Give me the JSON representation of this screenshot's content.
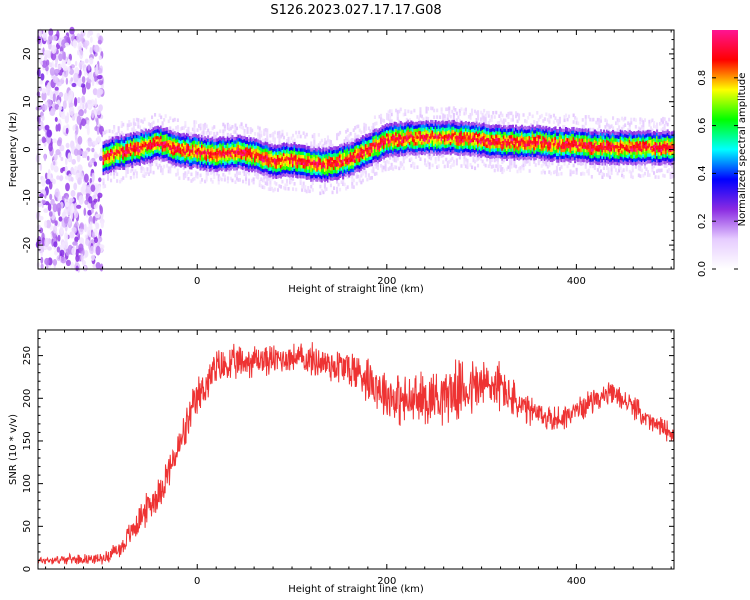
{
  "title": "S126.2023.027.17.17.G08",
  "chart_data": [
    {
      "type": "heatmap",
      "xlabel": "Height of straight line (km)",
      "ylabel": "Frequency (Hz)",
      "xlim": [
        -168,
        503
      ],
      "ylim": [
        -25,
        25
      ],
      "xticks": [
        0,
        200,
        400
      ],
      "yticks": [
        -20,
        -10,
        0,
        10,
        20
      ],
      "colorbar": {
        "label": "Normalized spectral amplitude",
        "range": [
          0.0,
          1.0
        ],
        "ticks": [
          0.0,
          0.2,
          0.4,
          0.6,
          0.8
        ],
        "colors": [
          "#ffffff",
          "#e6ccff",
          "#8a2be2",
          "#0000ff",
          "#00ffff",
          "#00ff00",
          "#ffff00",
          "#ff0000",
          "#ff1493"
        ]
      },
      "noise_region_x": [
        -168,
        -100
      ],
      "peak_frequency_track": {
        "x": [
          -100,
          -80,
          -60,
          -40,
          -20,
          0,
          20,
          40,
          60,
          80,
          100,
          120,
          140,
          160,
          180,
          200,
          220,
          240,
          260,
          280,
          300,
          320,
          340,
          360,
          380,
          400,
          420,
          440,
          460,
          480,
          500
        ],
        "y": [
          -1.5,
          -0.5,
          0.5,
          1.5,
          0,
          -0.5,
          -1,
          -0.5,
          -1,
          -2.5,
          -2,
          -3,
          -3,
          -2,
          0,
          2,
          2.5,
          2.5,
          2.5,
          2.5,
          2,
          1.5,
          1.5,
          1.5,
          1,
          1,
          0.5,
          0.5,
          0.5,
          0.5,
          0.5
        ]
      }
    },
    {
      "type": "line",
      "xlabel": "Height of straight line (km)",
      "ylabel": "SNR (10 * v/v)",
      "xlim": [
        -168,
        503
      ],
      "ylim": [
        0,
        280
      ],
      "xticks": [
        0,
        200,
        400
      ],
      "yticks": [
        0,
        50,
        100,
        150,
        200,
        250
      ],
      "color": "#ee3333",
      "envelope": {
        "x": [
          -168,
          -120,
          -100,
          -80,
          -60,
          -40,
          -20,
          0,
          20,
          40,
          60,
          80,
          100,
          120,
          140,
          160,
          180,
          200,
          220,
          240,
          260,
          280,
          300,
          320,
          340,
          360,
          380,
          400,
          420,
          440,
          460,
          480,
          503
        ],
        "y": [
          10,
          12,
          12,
          25,
          60,
          90,
          140,
          200,
          235,
          240,
          245,
          245,
          248,
          245,
          240,
          235,
          225,
          205,
          195,
          200,
          205,
          210,
          215,
          215,
          190,
          180,
          175,
          185,
          200,
          205,
          190,
          170,
          160
        ]
      },
      "noise_amplitude": {
        "x": [
          -168,
          -100,
          -60,
          0,
          100,
          200,
          300,
          350,
          400,
          503
        ],
        "y": [
          4,
          5,
          15,
          20,
          14,
          25,
          30,
          15,
          12,
          10
        ]
      }
    }
  ]
}
